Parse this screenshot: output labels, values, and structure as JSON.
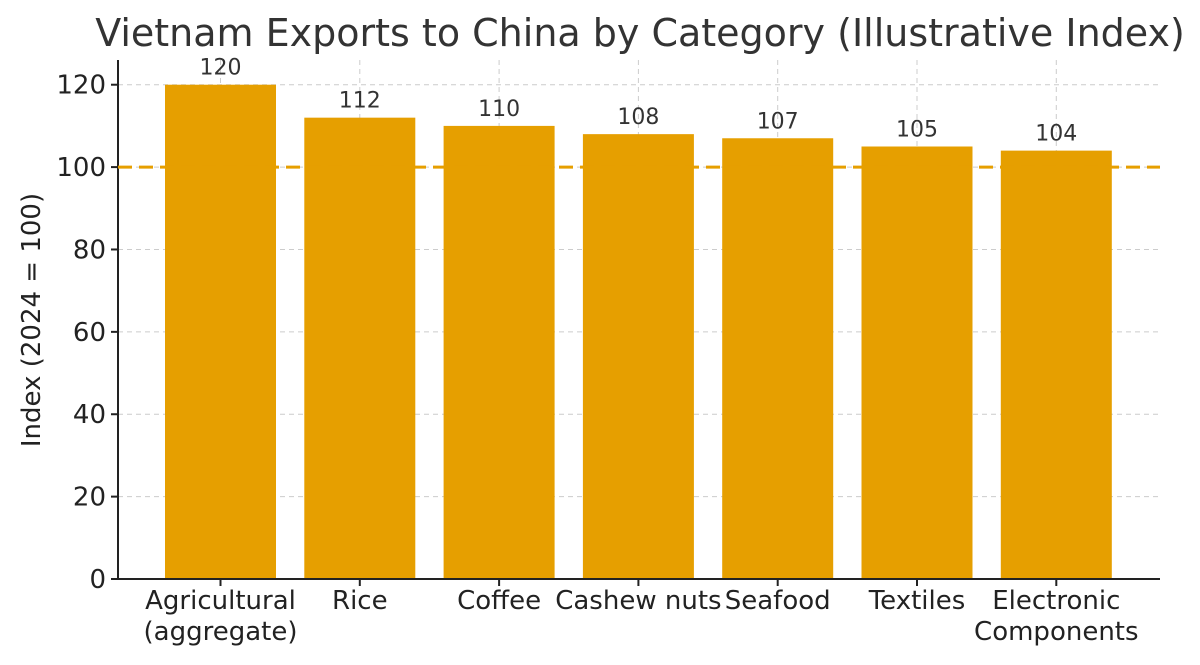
{
  "chart_data": {
    "type": "bar",
    "title": "Vietnam Exports to China by Category (Illustrative Index)",
    "xlabel": "",
    "ylabel": "Index (2024 = 100)",
    "categories": [
      [
        "Agricultural",
        "(aggregate)"
      ],
      [
        "Rice"
      ],
      [
        "Coffee"
      ],
      [
        "Cashew nuts"
      ],
      [
        "Seafood"
      ],
      [
        "Textiles"
      ],
      [
        "Electronic",
        "Components"
      ]
    ],
    "values": [
      120,
      112,
      110,
      108,
      107,
      105,
      104
    ],
    "ylim": [
      0,
      126
    ],
    "yticks": [
      0,
      20,
      40,
      60,
      80,
      100,
      120
    ],
    "reference_line": {
      "value": 100,
      "style": "dashed"
    },
    "grid": true,
    "colors": {
      "bar": "#E69F00",
      "reference_line": "#E69F00"
    }
  }
}
